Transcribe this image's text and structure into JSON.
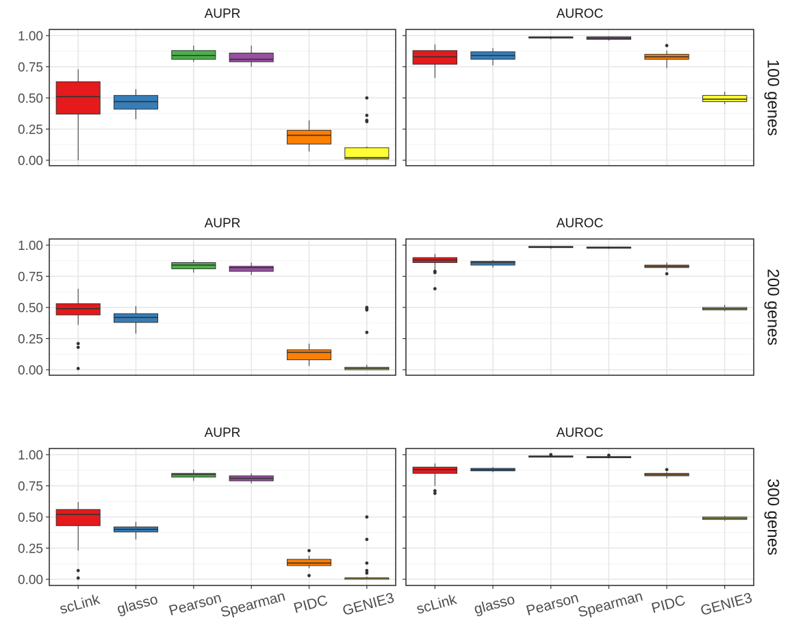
{
  "methods": [
    "scLink",
    "glasso",
    "Pearson",
    "Spearman",
    "PIDC",
    "GENIE3"
  ],
  "colors": {
    "scLink": "#e41a1c",
    "glasso": "#377eb8",
    "Pearson": "#4daf4a",
    "Spearman": "#984ea3",
    "PIDC": "#ff7f00",
    "GENIE3": "#ffff33"
  },
  "facets": {
    "columns": [
      "AUPR",
      "AUROC"
    ],
    "rows": [
      "100 genes",
      "200 genes",
      "300 genes"
    ]
  },
  "y_ticks": [
    "0.00",
    "0.25",
    "0.50",
    "0.75",
    "1.00"
  ],
  "chart_data": {
    "type": "box",
    "ylim": [
      0,
      1
    ],
    "grid": true,
    "legend": "none",
    "panels": [
      {
        "row": "100 genes",
        "col": "AUPR",
        "boxes": [
          {
            "method": "scLink",
            "min": 0.0,
            "q1": 0.37,
            "median": 0.51,
            "q3": 0.63,
            "max": 0.73,
            "outliers": []
          },
          {
            "method": "glasso",
            "min": 0.33,
            "q1": 0.41,
            "median": 0.47,
            "q3": 0.52,
            "max": 0.57,
            "outliers": []
          },
          {
            "method": "Pearson",
            "min": 0.79,
            "q1": 0.81,
            "median": 0.84,
            "q3": 0.88,
            "max": 0.92,
            "outliers": []
          },
          {
            "method": "Spearman",
            "min": 0.75,
            "q1": 0.79,
            "median": 0.81,
            "q3": 0.86,
            "max": 0.92,
            "outliers": []
          },
          {
            "method": "PIDC",
            "min": 0.07,
            "q1": 0.13,
            "median": 0.2,
            "q3": 0.24,
            "max": 0.32,
            "outliers": []
          },
          {
            "method": "GENIE3",
            "min": 0.0,
            "q1": 0.01,
            "median": 0.02,
            "q3": 0.1,
            "max": 0.11,
            "outliers": [
              0.5,
              0.36,
              0.32,
              0.31
            ]
          }
        ]
      },
      {
        "row": "100 genes",
        "col": "AUROC",
        "boxes": [
          {
            "method": "scLink",
            "min": 0.66,
            "q1": 0.77,
            "median": 0.83,
            "q3": 0.88,
            "max": 0.93,
            "outliers": []
          },
          {
            "method": "glasso",
            "min": 0.76,
            "q1": 0.81,
            "median": 0.84,
            "q3": 0.87,
            "max": 0.9,
            "outliers": []
          },
          {
            "method": "Pearson",
            "min": 0.97,
            "q1": 0.98,
            "median": 0.985,
            "q3": 0.99,
            "max": 0.995,
            "outliers": []
          },
          {
            "method": "Spearman",
            "min": 0.96,
            "q1": 0.97,
            "median": 0.98,
            "q3": 0.99,
            "max": 0.995,
            "outliers": []
          },
          {
            "method": "PIDC",
            "min": 0.74,
            "q1": 0.81,
            "median": 0.83,
            "q3": 0.85,
            "max": 0.88,
            "outliers": [
              0.92
            ]
          },
          {
            "method": "GENIE3",
            "min": 0.45,
            "q1": 0.47,
            "median": 0.49,
            "q3": 0.52,
            "max": 0.55,
            "outliers": []
          }
        ]
      },
      {
        "row": "200 genes",
        "col": "AUPR",
        "boxes": [
          {
            "method": "scLink",
            "min": 0.36,
            "q1": 0.44,
            "median": 0.49,
            "q3": 0.53,
            "max": 0.65,
            "outliers": [
              0.21,
              0.18,
              0.01
            ]
          },
          {
            "method": "glasso",
            "min": 0.29,
            "q1": 0.38,
            "median": 0.42,
            "q3": 0.45,
            "max": 0.51,
            "outliers": []
          },
          {
            "method": "Pearson",
            "min": 0.78,
            "q1": 0.81,
            "median": 0.84,
            "q3": 0.86,
            "max": 0.88,
            "outliers": []
          },
          {
            "method": "Spearman",
            "min": 0.76,
            "q1": 0.79,
            "median": 0.82,
            "q3": 0.83,
            "max": 0.86,
            "outliers": []
          },
          {
            "method": "PIDC",
            "min": 0.03,
            "q1": 0.08,
            "median": 0.14,
            "q3": 0.16,
            "max": 0.21,
            "outliers": []
          },
          {
            "method": "GENIE3",
            "min": 0.0,
            "q1": 0.0,
            "median": 0.01,
            "q3": 0.02,
            "max": 0.04,
            "outliers": [
              0.5,
              0.49,
              0.48,
              0.3
            ]
          }
        ]
      },
      {
        "row": "200 genes",
        "col": "AUROC",
        "boxes": [
          {
            "method": "scLink",
            "min": 0.8,
            "q1": 0.86,
            "median": 0.88,
            "q3": 0.9,
            "max": 0.93,
            "outliers": [
              0.79,
              0.78,
              0.65
            ]
          },
          {
            "method": "glasso",
            "min": 0.82,
            "q1": 0.84,
            "median": 0.86,
            "q3": 0.87,
            "max": 0.88,
            "outliers": []
          },
          {
            "method": "Pearson",
            "min": 0.97,
            "q1": 0.98,
            "median": 0.985,
            "q3": 0.99,
            "max": 0.995,
            "outliers": []
          },
          {
            "method": "Spearman",
            "min": 0.97,
            "q1": 0.975,
            "median": 0.98,
            "q3": 0.985,
            "max": 0.99,
            "outliers": []
          },
          {
            "method": "PIDC",
            "min": 0.8,
            "q1": 0.82,
            "median": 0.83,
            "q3": 0.84,
            "max": 0.86,
            "outliers": [
              0.77
            ]
          },
          {
            "method": "GENIE3",
            "min": 0.47,
            "q1": 0.48,
            "median": 0.49,
            "q3": 0.5,
            "max": 0.52,
            "outliers": []
          }
        ]
      },
      {
        "row": "300 genes",
        "col": "AUPR",
        "boxes": [
          {
            "method": "scLink",
            "min": 0.23,
            "q1": 0.43,
            "median": 0.52,
            "q3": 0.56,
            "max": 0.62,
            "outliers": [
              0.07,
              0.01
            ]
          },
          {
            "method": "glasso",
            "min": 0.32,
            "q1": 0.38,
            "median": 0.4,
            "q3": 0.42,
            "max": 0.46,
            "outliers": []
          },
          {
            "method": "Pearson",
            "min": 0.79,
            "q1": 0.82,
            "median": 0.84,
            "q3": 0.85,
            "max": 0.88,
            "outliers": []
          },
          {
            "method": "Spearman",
            "min": 0.77,
            "q1": 0.79,
            "median": 0.81,
            "q3": 0.83,
            "max": 0.85,
            "outliers": []
          },
          {
            "method": "PIDC",
            "min": 0.09,
            "q1": 0.11,
            "median": 0.13,
            "q3": 0.16,
            "max": 0.19,
            "outliers": [
              0.23,
              0.03
            ]
          },
          {
            "method": "GENIE3",
            "min": 0.0,
            "q1": 0.0,
            "median": 0.01,
            "q3": 0.01,
            "max": 0.02,
            "outliers": [
              0.5,
              0.32,
              0.13,
              0.07,
              0.05
            ]
          }
        ]
      },
      {
        "row": "300 genes",
        "col": "AUROC",
        "boxes": [
          {
            "method": "scLink",
            "min": 0.75,
            "q1": 0.85,
            "median": 0.88,
            "q3": 0.9,
            "max": 0.93,
            "outliers": [
              0.71,
              0.69
            ]
          },
          {
            "method": "glasso",
            "min": 0.86,
            "q1": 0.87,
            "median": 0.88,
            "q3": 0.89,
            "max": 0.9,
            "outliers": []
          },
          {
            "method": "Pearson",
            "min": 0.98,
            "q1": 0.98,
            "median": 0.985,
            "q3": 0.99,
            "max": 0.995,
            "outliers": [
              1.0
            ]
          },
          {
            "method": "Spearman",
            "min": 0.97,
            "q1": 0.975,
            "median": 0.98,
            "q3": 0.985,
            "max": 0.99,
            "outliers": [
              0.995
            ]
          },
          {
            "method": "PIDC",
            "min": 0.81,
            "q1": 0.83,
            "median": 0.84,
            "q3": 0.85,
            "max": 0.86,
            "outliers": [
              0.88
            ]
          },
          {
            "method": "GENIE3",
            "min": 0.47,
            "q1": 0.48,
            "median": 0.49,
            "q3": 0.5,
            "max": 0.51,
            "outliers": []
          }
        ]
      }
    ]
  }
}
